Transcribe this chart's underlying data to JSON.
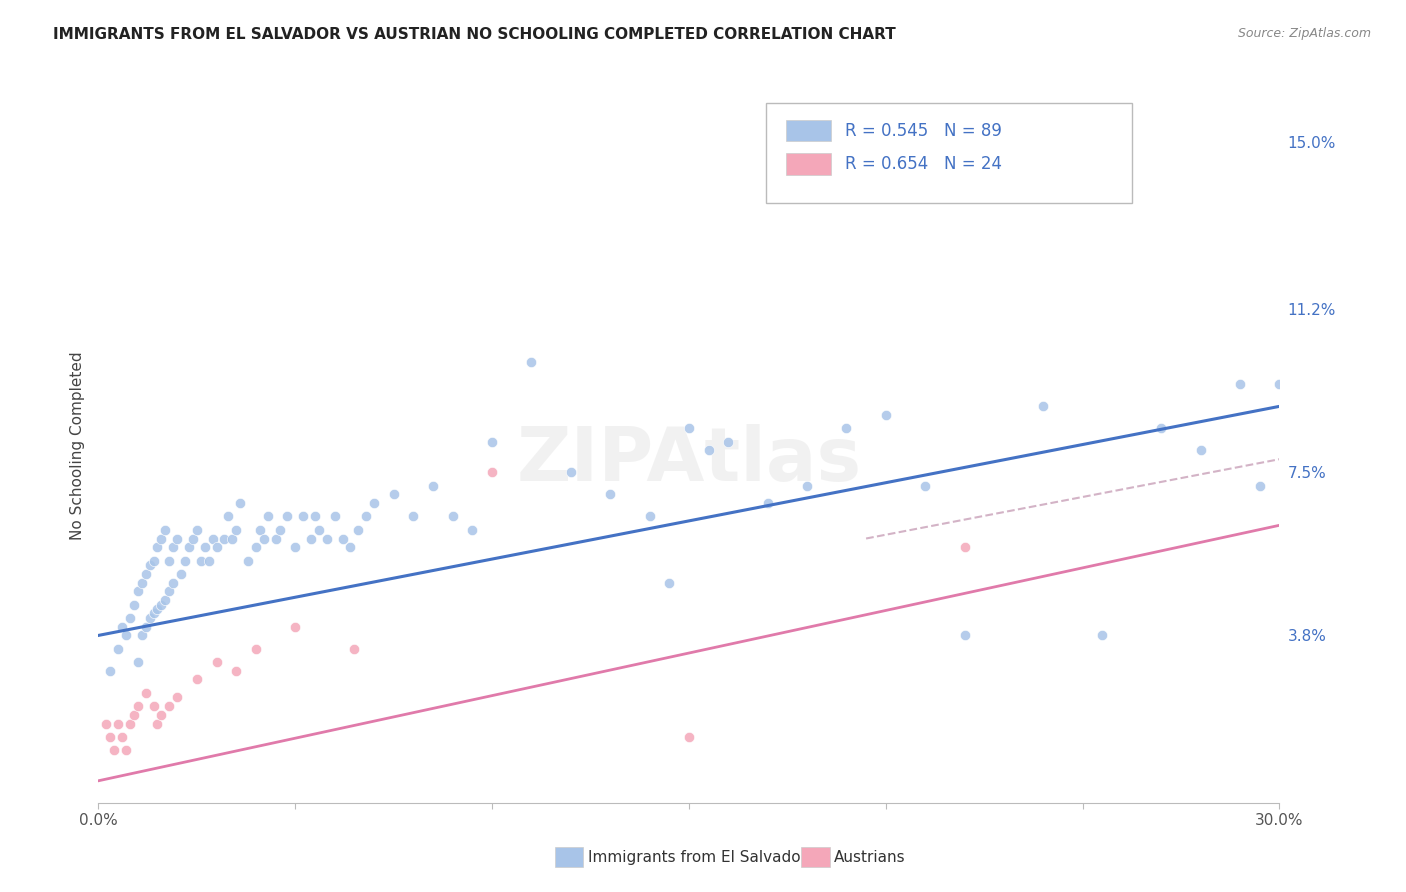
{
  "title": "IMMIGRANTS FROM EL SALVADOR VS AUSTRIAN NO SCHOOLING COMPLETED CORRELATION CHART",
  "source": "Source: ZipAtlas.com",
  "ylabel": "No Schooling Completed",
  "xlim": [
    0.0,
    0.3
  ],
  "ylim": [
    0.0,
    0.162
  ],
  "xticks": [
    0.0,
    0.05,
    0.1,
    0.15,
    0.2,
    0.25,
    0.3
  ],
  "xtick_labels": [
    "0.0%",
    "",
    "",
    "",
    "",
    "",
    "30.0%"
  ],
  "ytick_positions": [
    0.038,
    0.075,
    0.112,
    0.15
  ],
  "ytick_labels": [
    "3.8%",
    "7.5%",
    "11.2%",
    "15.0%"
  ],
  "blue_scatter_x": [
    0.003,
    0.005,
    0.006,
    0.007,
    0.008,
    0.009,
    0.01,
    0.01,
    0.011,
    0.011,
    0.012,
    0.012,
    0.013,
    0.013,
    0.014,
    0.014,
    0.015,
    0.015,
    0.016,
    0.016,
    0.017,
    0.017,
    0.018,
    0.018,
    0.019,
    0.019,
    0.02,
    0.021,
    0.022,
    0.023,
    0.024,
    0.025,
    0.026,
    0.027,
    0.028,
    0.029,
    0.03,
    0.032,
    0.033,
    0.034,
    0.035,
    0.036,
    0.038,
    0.04,
    0.041,
    0.042,
    0.043,
    0.045,
    0.046,
    0.048,
    0.05,
    0.052,
    0.054,
    0.055,
    0.056,
    0.058,
    0.06,
    0.062,
    0.064,
    0.066,
    0.068,
    0.07,
    0.075,
    0.08,
    0.085,
    0.09,
    0.095,
    0.1,
    0.11,
    0.12,
    0.13,
    0.14,
    0.15,
    0.16,
    0.17,
    0.18,
    0.19,
    0.2,
    0.21,
    0.22,
    0.24,
    0.255,
    0.27,
    0.28,
    0.29,
    0.295,
    0.3,
    0.155,
    0.145
  ],
  "blue_scatter_y": [
    0.03,
    0.035,
    0.04,
    0.038,
    0.042,
    0.045,
    0.048,
    0.032,
    0.05,
    0.038,
    0.052,
    0.04,
    0.054,
    0.042,
    0.055,
    0.043,
    0.058,
    0.044,
    0.06,
    0.045,
    0.062,
    0.046,
    0.055,
    0.048,
    0.058,
    0.05,
    0.06,
    0.052,
    0.055,
    0.058,
    0.06,
    0.062,
    0.055,
    0.058,
    0.055,
    0.06,
    0.058,
    0.06,
    0.065,
    0.06,
    0.062,
    0.068,
    0.055,
    0.058,
    0.062,
    0.06,
    0.065,
    0.06,
    0.062,
    0.065,
    0.058,
    0.065,
    0.06,
    0.065,
    0.062,
    0.06,
    0.065,
    0.06,
    0.058,
    0.062,
    0.065,
    0.068,
    0.07,
    0.065,
    0.072,
    0.065,
    0.062,
    0.082,
    0.1,
    0.075,
    0.07,
    0.065,
    0.085,
    0.082,
    0.068,
    0.072,
    0.085,
    0.088,
    0.072,
    0.038,
    0.09,
    0.038,
    0.085,
    0.08,
    0.095,
    0.072,
    0.095,
    0.08,
    0.05
  ],
  "pink_scatter_x": [
    0.002,
    0.003,
    0.004,
    0.005,
    0.006,
    0.007,
    0.008,
    0.009,
    0.01,
    0.012,
    0.014,
    0.015,
    0.016,
    0.018,
    0.02,
    0.025,
    0.03,
    0.035,
    0.04,
    0.05,
    0.065,
    0.1,
    0.15,
    0.22
  ],
  "pink_scatter_y": [
    0.018,
    0.015,
    0.012,
    0.018,
    0.015,
    0.012,
    0.018,
    0.02,
    0.022,
    0.025,
    0.022,
    0.018,
    0.02,
    0.022,
    0.024,
    0.028,
    0.032,
    0.03,
    0.035,
    0.04,
    0.035,
    0.075,
    0.015,
    0.058
  ],
  "blue_line_x": [
    0.0,
    0.3
  ],
  "blue_line_y": [
    0.038,
    0.09
  ],
  "pink_line_x": [
    0.0,
    0.3
  ],
  "pink_line_y": [
    0.005,
    0.063
  ],
  "pink_dash_line_x": [
    0.195,
    0.3
  ],
  "pink_dash_line_y": [
    0.06,
    0.078
  ],
  "scatter_size": 55,
  "blue_color": "#a8c4e8",
  "pink_color": "#f4a7b9",
  "blue_line_color": "#4472c4",
  "pink_line_color": "#e07aaa",
  "pink_dash_color": "#c8a0b8",
  "grid_color": "#cccccc",
  "right_label_color": "#4472c4",
  "legend_text_color": "#4472c4",
  "watermark": "ZIPAtlas",
  "background_color": "#ffffff"
}
